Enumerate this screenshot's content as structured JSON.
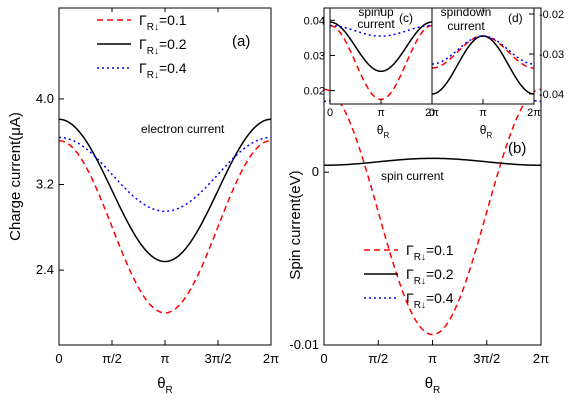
{
  "series_styles": [
    {
      "color": "#ff0000",
      "dash": "6,4"
    },
    {
      "color": "#000000",
      "dash": ""
    },
    {
      "color": "#0000ff",
      "dash": "2,3"
    }
  ],
  "legend": {
    "symbol": "Γ",
    "sub": "R↓",
    "values": [
      "=0.1",
      "=0.2",
      "=0.4"
    ]
  },
  "chart_data": [
    {
      "id": "a",
      "type": "line",
      "panel_label": "(a)",
      "annotation": "electron current",
      "ylabel": "Charge current(μA)",
      "xlabel": "θ_R",
      "xlim": [
        0,
        6.2832
      ],
      "ylim": [
        1.7,
        4.85
      ],
      "xticks": [
        "0",
        "π/2",
        "π",
        "3π/2",
        "2π"
      ],
      "yticks": [
        2.4,
        3.2,
        4.0
      ],
      "ytick_labels": [
        "2.4",
        "3.2",
        "4.0"
      ],
      "series": [
        {
          "name": "Γ_R↓=0.1",
          "model": "cos",
          "edge": 3.61,
          "mid": 2.0
        },
        {
          "name": "Γ_R↓=0.2",
          "model": "cos",
          "edge": 3.81,
          "mid": 2.48
        },
        {
          "name": "Γ_R↓=0.4",
          "model": "cos",
          "edge": 3.64,
          "mid": 2.95
        }
      ]
    },
    {
      "id": "b",
      "type": "line",
      "panel_label": "(b)",
      "annotation": "spin current",
      "ylabel": "Spin current(eV)",
      "xlabel": "θ_R",
      "xlim": [
        0,
        6.2832
      ],
      "ylim": [
        -0.01,
        0.0095
      ],
      "xticks": [
        "0",
        "π/2",
        "π",
        "3π/2",
        "2π"
      ],
      "yticks": [
        -0.01,
        0
      ],
      "ytick_labels": [
        "-0.01",
        "0"
      ],
      "series": [
        {
          "name": "Γ_R↓=0.1",
          "model": "cos",
          "edge": 0.0048,
          "mid": -0.0094
        },
        {
          "name": "Γ_R↓=0.2",
          "model": "cos",
          "edge": 0.0004,
          "mid": 0.0008
        },
        {
          "name": "Γ_R↓=0.4",
          "model": "cos",
          "edge": 0.0041,
          "mid": 0.0089
        }
      ]
    },
    {
      "id": "c",
      "type": "line",
      "panel_label": "(c)",
      "annotation": [
        "spinup",
        "current"
      ],
      "xlabel": "θ_R",
      "xlim": [
        0,
        6.2832
      ],
      "ylim": [
        0.0162,
        0.0435
      ],
      "xticks": [
        "0",
        "π",
        "2π"
      ],
      "yticks": [
        0.02,
        0.03,
        0.04
      ],
      "ytick_labels": [
        "0.02",
        "0.03",
        "0.04"
      ],
      "series": [
        {
          "name": "Γ_R↓=0.1",
          "model": "cos",
          "edge": 0.0385,
          "mid": 0.0175
        },
        {
          "name": "Γ_R↓=0.2",
          "model": "cos",
          "edge": 0.0395,
          "mid": 0.0255
        },
        {
          "name": "Γ_R↓=0.4",
          "model": "cos",
          "edge": 0.0385,
          "mid": 0.0355
        }
      ]
    },
    {
      "id": "d",
      "type": "line",
      "panel_label": "(d)",
      "annotation": [
        "spindown",
        "current"
      ],
      "xlabel": "θ_R",
      "xlim": [
        0,
        6.2832
      ],
      "ylim": [
        -0.0425,
        -0.0185
      ],
      "xticks": [
        "0",
        "π",
        "2π"
      ],
      "yticks": [
        -0.02,
        -0.03,
        -0.04
      ],
      "ytick_labels": [
        "-0.02",
        "-0.03",
        "-0.04"
      ],
      "series": [
        {
          "name": "Γ_R↓=0.1",
          "model": "cos",
          "edge": -0.0335,
          "mid": -0.0255
        },
        {
          "name": "Γ_R↓=0.2",
          "model": "cos",
          "edge": -0.04,
          "mid": -0.0255
        },
        {
          "name": "Γ_R↓=0.4",
          "model": "cos",
          "edge": -0.0325,
          "mid": -0.0255
        }
      ]
    }
  ]
}
